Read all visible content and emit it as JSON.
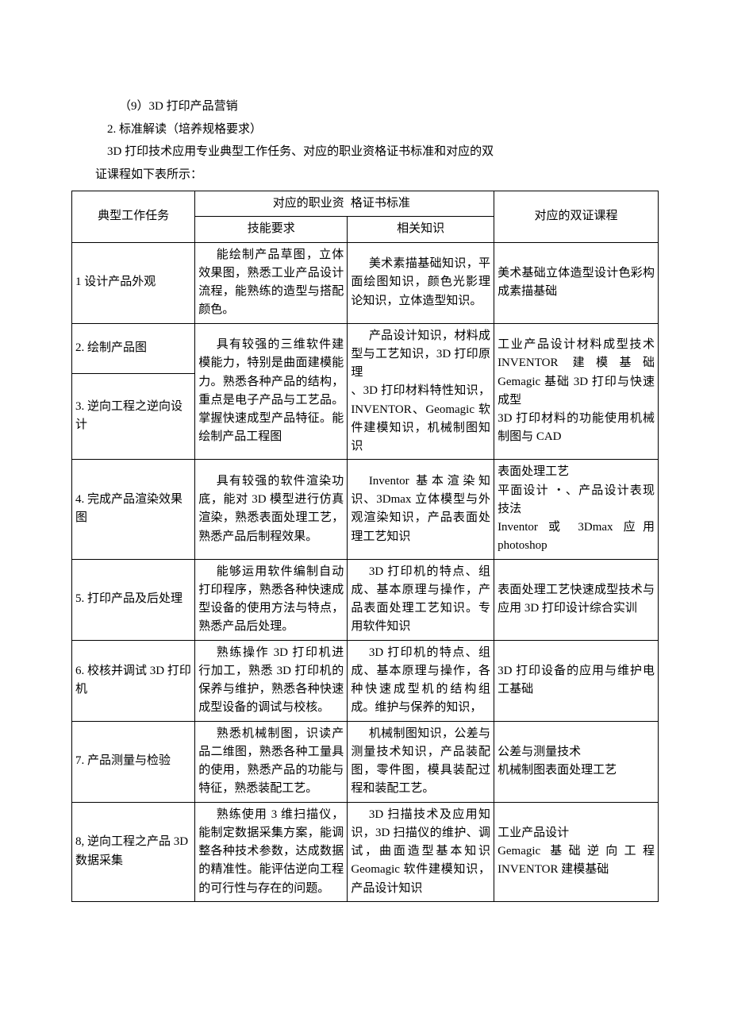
{
  "intro": {
    "line1": "（9）3D 打印产品营销",
    "line2": "2. 标准解读（培养规格要求）",
    "line3": "3D 打印技术应用专业典型工作任务、对应的职业资格证书标准和对应的双",
    "line4": "证课程如下表所示："
  },
  "table": {
    "hdr_task": "典型工作任务",
    "hdr_qual_top": "对应的职业资",
    "hdr_qual_top2": "格证书标准",
    "hdr_skill": "技能要求",
    "hdr_know": "相关知识",
    "hdr_course": "对应的双证课程",
    "rows": [
      {
        "task": "1 设计产品外观",
        "skill": "能绘制产品草图，立体效果图，熟悉工业产品设计流程，能熟练的造型与搭配颜色。",
        "know": "美术素描基础知识，平面绘图知识，颜色光影理论知识，立体造型知识。",
        "course": "美术基础立体造型设计色彩构成素描基础"
      },
      {
        "task": "2. 绘制产品图",
        "merge_with_next_skill": true
      },
      {
        "task": "3. 逆向工程之逆向设计",
        "skill": "具有较强的三维软件建模能力，特别是曲面建模能力。熟悉各种产品的结构，重点是电子产品与工艺品。掌握快速成型产品特征。能绘制产品工程图",
        "know": "产品设计知识，材料成型与工艺知识，3D 打印原理\n、3D 打印材料特性知识，INVENTOR、Geomagic 软件建模知识，机械制图知识",
        "course": "工业产品设计材料成型技术 INVENTOR 建模基础 Gemagic 基础 3D 打印与快速成型\n3D 打印材料的功能使用机械制图与 CAD"
      },
      {
        "task": "4. 完成产品渲染效果图",
        "skill": "具有较强的软件渲染功底，能对 3D 模型进行仿真渲染，熟悉表面处理工艺，熟悉产品后制程效果。",
        "know": "Inventor 基本渲染知识、3Dmax 立体模型与外观渲染知识，产品表面处理工艺知识",
        "course": "表面处理工艺\n平面设计 ・、产品设计表现技法\nInventor 或 3Dmax 应用 photoshop"
      },
      {
        "task": "5. 打印产品及后处理",
        "skill": "能够运用软件编制自动打印程序，熟悉各种快速成型设备的使用方法与特点，熟悉产品后处理。",
        "know": "3D 打印机的特点、组成、基本原理与操作，产品表面处理工艺知识。专用软件知识",
        "course": "表面处理工艺快速成型技术与应用 3D 打印设计综合实训"
      },
      {
        "task": "6. 校核并调试 3D 打印机",
        "skill": "熟练操作 3D 打印机进行加工，熟悉 3D 打印机的保养与维护，熟悉各种快速成型设备的调试与校核。",
        "know": "3D 打印机的特点、组成、基本原理与操作，各种快速成型机的结构组成。维护与保养的知识，",
        "course": "3D 打印设备的应用与维护电工基础"
      },
      {
        "task": "7. 产品测量与检验",
        "skill": "熟悉机械制图，识读产品二维图，熟悉各种工量具的使用，熟悉产品的功能与特征，熟悉装配工艺。",
        "know": "机械制图知识，公差与测量技术知识，产品装配图，零件图，模具装配过程和装配工艺。",
        "course": "公差与测量技术\n机械制图表面处理工艺"
      },
      {
        "task": "8, 逆向工程之产品 3D 数据采集",
        "skill": "熟练使用 3 维扫描仪，能制定数据采集方案，能调整各种技术参数，达成数据的精准性。能评估逆向工程的可行性与存在的问题。",
        "know": "3D 扫描技术及应用知识，3D 扫描仪的维护、调试，曲面造型基本知识 Geomagic 软件建模知识，产品设计知识",
        "course": "工业产品设计\nGemagic 基础逆向工程 INVENTOR 建模基础"
      }
    ]
  }
}
